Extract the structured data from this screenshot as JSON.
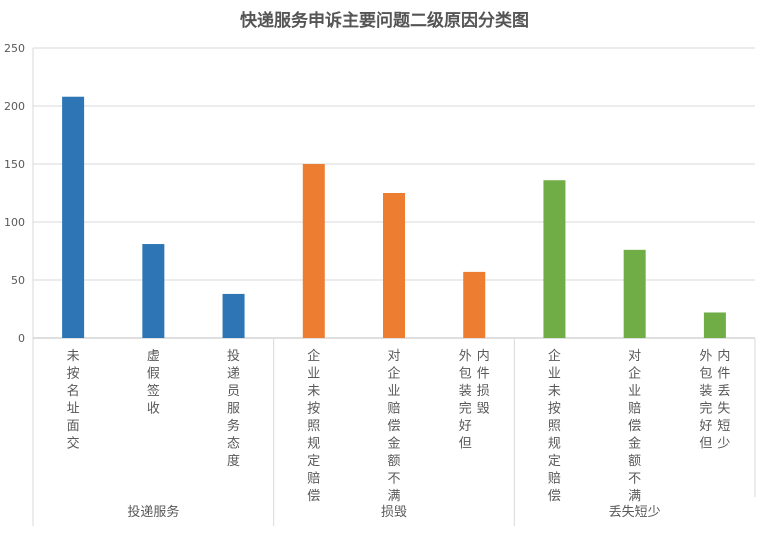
{
  "chart_data": {
    "type": "bar",
    "title": "快递服务申诉主要问题二级原因分类图",
    "xlabel": "",
    "ylabel": "",
    "ylim": [
      0,
      250
    ],
    "yticks": [
      0,
      50,
      100,
      150,
      200,
      250
    ],
    "grid": true,
    "legend": "none",
    "groups": [
      {
        "name": "投递服务",
        "color": "#2E75B6",
        "items": [
          {
            "label": "未按名址面交",
            "label_lines": [
              "未按名址面交"
            ],
            "value": 208
          },
          {
            "label": "虚假签收",
            "label_lines": [
              "虚假签收"
            ],
            "value": 81
          },
          {
            "label": "投递员服务态度",
            "label_lines": [
              "投递员服务态度"
            ],
            "value": 38
          }
        ]
      },
      {
        "name": "损毁",
        "color": "#ED7D31",
        "items": [
          {
            "label": "企业未按照规定赔偿",
            "label_lines": [
              "企业未按照规定赔偿"
            ],
            "value": 150
          },
          {
            "label": "对企业赔偿金额不满",
            "label_lines": [
              "对企业赔偿金额不满"
            ],
            "value": 125
          },
          {
            "label": "外包装完好但内件损毁",
            "label_lines": [
              "外包装完好但",
              "内件损毁"
            ],
            "value": 57
          }
        ]
      },
      {
        "name": "丢失短少",
        "color": "#70AD47",
        "items": [
          {
            "label": "企业未按照规定赔偿",
            "label_lines": [
              "企业未按照规定赔偿"
            ],
            "value": 136
          },
          {
            "label": "对企业赔偿金额不满",
            "label_lines": [
              "对企业赔偿金额不满"
            ],
            "value": 76
          },
          {
            "label": "外包装完好但内件丢失短少",
            "label_lines": [
              "外包装完好但",
              "内件丢失短少"
            ],
            "value": 22
          }
        ]
      }
    ]
  }
}
